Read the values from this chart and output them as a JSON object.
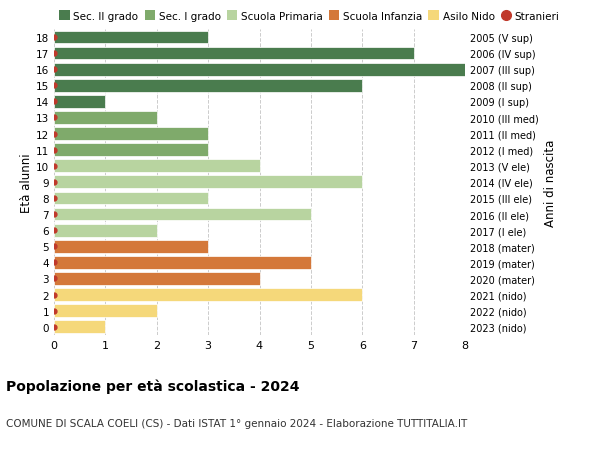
{
  "ages": [
    18,
    17,
    16,
    15,
    14,
    13,
    12,
    11,
    10,
    9,
    8,
    7,
    6,
    5,
    4,
    3,
    2,
    1,
    0
  ],
  "right_labels": [
    "2005 (V sup)",
    "2006 (IV sup)",
    "2007 (III sup)",
    "2008 (II sup)",
    "2009 (I sup)",
    "2010 (III med)",
    "2011 (II med)",
    "2012 (I med)",
    "2013 (V ele)",
    "2014 (IV ele)",
    "2015 (III ele)",
    "2016 (II ele)",
    "2017 (I ele)",
    "2018 (mater)",
    "2019 (mater)",
    "2020 (mater)",
    "2021 (nido)",
    "2022 (nido)",
    "2023 (nido)"
  ],
  "bars": [
    {
      "age": 18,
      "value": 3,
      "color": "#4a7c4e"
    },
    {
      "age": 17,
      "value": 7,
      "color": "#4a7c4e"
    },
    {
      "age": 16,
      "value": 8,
      "color": "#4a7c4e"
    },
    {
      "age": 15,
      "value": 6,
      "color": "#4a7c4e"
    },
    {
      "age": 14,
      "value": 1,
      "color": "#4a7c4e"
    },
    {
      "age": 13,
      "value": 2,
      "color": "#7faa6b"
    },
    {
      "age": 12,
      "value": 3,
      "color": "#7faa6b"
    },
    {
      "age": 11,
      "value": 3,
      "color": "#7faa6b"
    },
    {
      "age": 10,
      "value": 4,
      "color": "#b8d4a0"
    },
    {
      "age": 9,
      "value": 6,
      "color": "#b8d4a0"
    },
    {
      "age": 8,
      "value": 3,
      "color": "#b8d4a0"
    },
    {
      "age": 7,
      "value": 5,
      "color": "#b8d4a0"
    },
    {
      "age": 6,
      "value": 2,
      "color": "#b8d4a0"
    },
    {
      "age": 5,
      "value": 3,
      "color": "#d4783a"
    },
    {
      "age": 4,
      "value": 5,
      "color": "#d4783a"
    },
    {
      "age": 3,
      "value": 4,
      "color": "#d4783a"
    },
    {
      "age": 2,
      "value": 6,
      "color": "#f5d87a"
    },
    {
      "age": 1,
      "value": 2,
      "color": "#f5d87a"
    },
    {
      "age": 0,
      "value": 1,
      "color": "#f5d87a"
    }
  ],
  "stranieri_dot_color": "#c0392b",
  "legend_categories": [
    "Sec. II grado",
    "Sec. I grado",
    "Scuola Primaria",
    "Scuola Infanzia",
    "Asilo Nido",
    "Stranieri"
  ],
  "legend_colors": [
    "#4a7c4e",
    "#7faa6b",
    "#b8d4a0",
    "#d4783a",
    "#f5d87a",
    "#c0392b"
  ],
  "ylabel": "Età alunni",
  "right_ylabel": "Anni di nascita",
  "title": "Popolazione per età scolastica - 2024",
  "subtitle": "COMUNE DI SCALA COELI (CS) - Dati ISTAT 1° gennaio 2024 - Elaborazione TUTTITALIA.IT",
  "xlim": [
    0,
    8
  ],
  "xticks": [
    0,
    1,
    2,
    3,
    4,
    5,
    6,
    7,
    8
  ],
  "background_color": "#ffffff",
  "bar_height": 0.8,
  "grid_color": "#cccccc",
  "bar_edge_color": "#ffffff",
  "bar_linewidth": 0.5
}
